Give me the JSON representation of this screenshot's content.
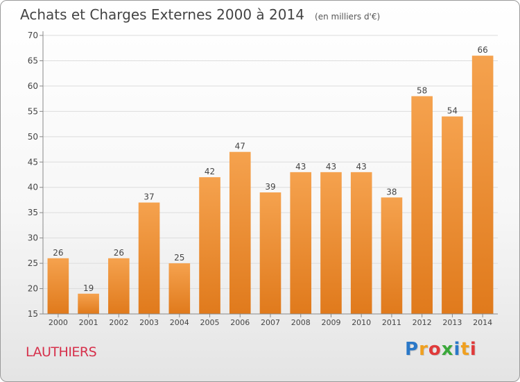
{
  "header": {
    "title": "Achats et Charges Externes 2000 à 2014",
    "unit": "(en milliers d'€)"
  },
  "footer": {
    "commune": "LAUTHIERS",
    "logo_text": "Proxiti",
    "logo_letters": [
      {
        "ch": "P",
        "color": "#2a78c8"
      },
      {
        "ch": "r",
        "color": "#f0a020"
      },
      {
        "ch": "o",
        "color": "#e03a3a"
      },
      {
        "ch": "x",
        "color": "#3aa83a"
      },
      {
        "ch": "i",
        "color": "#2a78c8"
      },
      {
        "ch": "t",
        "color": "#f0a020"
      },
      {
        "ch": "i",
        "color": "#e03a3a"
      }
    ]
  },
  "colors": {
    "bar_top": "#f5a24e",
    "bar_bottom": "#e07a1c",
    "grid": "#dcdcdc",
    "axis": "#888888",
    "text": "#444444"
  },
  "chart_data": {
    "type": "bar",
    "title": "Achats et Charges Externes 2000 à 2014",
    "subtitle": "(en milliers d'€)",
    "xlabel": "",
    "ylabel": "",
    "categories": [
      "2000",
      "2001",
      "2002",
      "2003",
      "2004",
      "2005",
      "2006",
      "2007",
      "2008",
      "2009",
      "2010",
      "2011",
      "2012",
      "2013",
      "2014"
    ],
    "values": [
      26,
      19,
      26,
      37,
      25,
      42,
      47,
      39,
      43,
      43,
      43,
      38,
      58,
      54,
      66
    ],
    "ylim": [
      15,
      70
    ],
    "yticks": [
      15,
      20,
      25,
      30,
      35,
      40,
      45,
      50,
      55,
      60,
      65,
      70
    ],
    "grid": true,
    "data_labels": true
  }
}
